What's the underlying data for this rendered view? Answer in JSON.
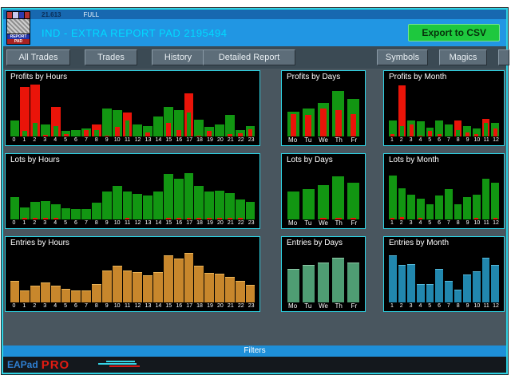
{
  "window": {
    "top_strip": {
      "value": "21.613",
      "mode": "FULL"
    },
    "header": {
      "title": "IND - EXTRA REPORT PAD 2195494",
      "export_label": "Export to CSV"
    },
    "logo": {
      "line1": "REPORT",
      "line2": "PAD"
    },
    "filters_label": "Filters",
    "footer": {
      "brand": "EAPad",
      "pro": "PRO"
    }
  },
  "tabs": [
    {
      "label": "All Trades"
    },
    {
      "label": "Trades"
    },
    {
      "label": "History"
    },
    {
      "label": "Detailed Report"
    },
    {
      "label": "Symbols"
    },
    {
      "label": "Magics"
    }
  ],
  "colors": {
    "profit_green": "#129612",
    "loss_red": "#ea1409",
    "entries_orange": "#c8872c",
    "entries_orange_edge": "#e9b357",
    "entries_teal": "#4f9d73",
    "entries_teal_edge": "#8fcaa8",
    "entries_blue": "#2187ae",
    "entries_blue_edge": "#57b9d9",
    "panel_border_cyan": "#2ed3e4",
    "header_blue": "#2196e3",
    "title_cyan": "#00dbff",
    "export_green": "#1ec83e",
    "filters_blue": "#1e8fd8"
  },
  "chart_data": [
    {
      "id": "profits-by-hours",
      "type": "bar",
      "title": "Profits by Hours",
      "ylim": [
        0,
        1
      ],
      "units": "relative-height",
      "grid": false,
      "legend": "none",
      "labels": [
        "0",
        "1",
        "2",
        "3",
        "4",
        "5",
        "6",
        "7",
        "8",
        "9",
        "10",
        "11",
        "12",
        "13",
        "14",
        "15",
        "16",
        "17",
        "18",
        "19",
        "20",
        "21",
        "22",
        "23"
      ],
      "series": [
        {
          "name": "profit",
          "color": "#129612",
          "values": [
            0.3,
            0.1,
            0.25,
            0.22,
            0.2,
            0.1,
            0.12,
            0.15,
            0.12,
            0.52,
            0.5,
            0.3,
            0.22,
            0.2,
            0.38,
            0.55,
            0.5,
            0.45,
            0.32,
            0.18,
            0.22,
            0.4,
            0.12,
            0.2
          ]
        },
        {
          "name": "loss",
          "color": "#ea1409",
          "values": [
            0,
            0.93,
            0.97,
            0.03,
            0.55,
            0.04,
            0,
            0.12,
            0.22,
            0.02,
            0.18,
            0.45,
            0,
            0.08,
            0,
            0.25,
            0.12,
            0.8,
            0.02,
            0.1,
            0,
            0.04,
            0.06,
            0.14
          ]
        }
      ]
    },
    {
      "id": "profits-by-days",
      "type": "bar",
      "title": "Profits by Days",
      "ylim": [
        0,
        1
      ],
      "units": "relative-height",
      "grid": false,
      "legend": "none",
      "label_size": 8,
      "labels": [
        "Mo",
        "Tu",
        "We",
        "Th",
        "Fr"
      ],
      "series": [
        {
          "name": "profit",
          "color": "#129612",
          "values": [
            0.46,
            0.53,
            0.62,
            0.85,
            0.7
          ]
        },
        {
          "name": "loss",
          "color": "#ea1409",
          "values": [
            0.42,
            0.4,
            0.52,
            0.5,
            0.42
          ]
        }
      ]
    },
    {
      "id": "profits-by-month",
      "type": "bar",
      "title": "Profits by Month",
      "ylim": [
        0,
        1
      ],
      "units": "relative-height",
      "grid": false,
      "legend": "none",
      "labels": [
        "1",
        "2",
        "3",
        "4",
        "5",
        "6",
        "7",
        "8",
        "9",
        "10",
        "11",
        "12"
      ],
      "series": [
        {
          "name": "profit",
          "color": "#129612",
          "values": [
            0.3,
            0.2,
            0.3,
            0.28,
            0.17,
            0.3,
            0.22,
            0.12,
            0.2,
            0.15,
            0.26,
            0.25
          ]
        },
        {
          "name": "loss",
          "color": "#ea1409",
          "values": [
            0.05,
            0.95,
            0.22,
            0.02,
            0.1,
            0.04,
            0,
            0.3,
            0.08,
            0.05,
            0.33,
            0.15
          ]
        }
      ]
    },
    {
      "id": "lots-by-hours",
      "type": "bar",
      "title": "Lots by Hours",
      "ylim": [
        0,
        1
      ],
      "units": "relative-height",
      "grid": false,
      "legend": "none",
      "labels": [
        "0",
        "1",
        "2",
        "3",
        "4",
        "5",
        "6",
        "7",
        "8",
        "9",
        "10",
        "11",
        "12",
        "13",
        "14",
        "15",
        "16",
        "17",
        "18",
        "19",
        "20",
        "21",
        "22",
        "23"
      ],
      "series": [
        {
          "name": "lots",
          "color": "#129612",
          "values": [
            0.42,
            0.22,
            0.33,
            0.34,
            0.28,
            0.21,
            0.2,
            0.19,
            0.31,
            0.52,
            0.63,
            0.52,
            0.48,
            0.45,
            0.52,
            0.85,
            0.76,
            0.87,
            0.62,
            0.52,
            0.54,
            0.49,
            0.38,
            0.33
          ]
        },
        {
          "name": "loss-marker",
          "color": "#ea1409",
          "values": [
            0,
            0.03,
            0.03,
            0.03,
            0.03,
            0,
            0,
            0,
            0,
            0,
            0,
            0.03,
            0,
            0,
            0,
            0.03,
            0.03,
            0.03,
            0.03,
            0.03,
            0.03,
            0.03,
            0.03,
            0
          ]
        }
      ]
    },
    {
      "id": "lots-by-days",
      "type": "bar",
      "title": "Lots by Days",
      "ylim": [
        0,
        1
      ],
      "units": "relative-height",
      "grid": false,
      "legend": "none",
      "label_size": 8,
      "labels": [
        "Mo",
        "Tu",
        "We",
        "Th",
        "Fr"
      ],
      "series": [
        {
          "name": "lots",
          "color": "#129612",
          "values": [
            0.52,
            0.57,
            0.64,
            0.8,
            0.68
          ]
        },
        {
          "name": "loss-marker",
          "color": "#ea1409",
          "values": [
            0,
            0,
            0.03,
            0.03,
            0.03
          ]
        }
      ]
    },
    {
      "id": "lots-by-month",
      "type": "bar",
      "title": "Lots by Month",
      "ylim": [
        0,
        1
      ],
      "units": "relative-height",
      "grid": false,
      "legend": "none",
      "labels": [
        "1",
        "2",
        "3",
        "4",
        "5",
        "6",
        "7",
        "8",
        "9",
        "10",
        "11",
        "12"
      ],
      "series": [
        {
          "name": "lots",
          "color": "#129612",
          "values": [
            0.82,
            0.58,
            0.47,
            0.39,
            0.28,
            0.45,
            0.57,
            0.28,
            0.42,
            0.46,
            0.76,
            0.68
          ]
        },
        {
          "name": "loss-marker",
          "color": "#ea1409",
          "values": [
            0.03,
            0.04,
            0,
            0.03,
            0,
            0,
            0,
            0,
            0,
            0.03,
            0,
            0.03
          ]
        }
      ]
    },
    {
      "id": "entries-by-hours",
      "type": "bar",
      "title": "Entries by Hours",
      "ylim": [
        0,
        1
      ],
      "units": "relative-height",
      "grid": false,
      "legend": "none",
      "labels": [
        "0",
        "1",
        "2",
        "3",
        "4",
        "5",
        "6",
        "7",
        "8",
        "9",
        "10",
        "11",
        "12",
        "13",
        "14",
        "15",
        "16",
        "17",
        "18",
        "19",
        "20",
        "21",
        "22",
        "23"
      ],
      "series": [
        {
          "name": "entries",
          "color": "#c8872c",
          "edge": "#e9b357",
          "values": [
            0.4,
            0.23,
            0.32,
            0.38,
            0.32,
            0.25,
            0.22,
            0.22,
            0.35,
            0.6,
            0.68,
            0.6,
            0.56,
            0.51,
            0.57,
            0.88,
            0.82,
            0.92,
            0.68,
            0.55,
            0.54,
            0.48,
            0.41,
            0.33
          ]
        }
      ]
    },
    {
      "id": "entries-by-days",
      "type": "bar",
      "title": "Entries by Days",
      "ylim": [
        0,
        1
      ],
      "units": "relative-height",
      "grid": false,
      "legend": "none",
      "label_size": 8,
      "labels": [
        "Mo",
        "Tu",
        "We",
        "Th",
        "Fr"
      ],
      "series": [
        {
          "name": "entries",
          "color": "#4f9d73",
          "edge": "#8fcaa8",
          "values": [
            0.62,
            0.7,
            0.75,
            0.84,
            0.74
          ]
        }
      ]
    },
    {
      "id": "entries-by-month",
      "type": "bar",
      "title": "Entries by Month",
      "ylim": [
        0,
        1
      ],
      "units": "relative-height",
      "grid": false,
      "legend": "none",
      "labels": [
        "1",
        "2",
        "3",
        "4",
        "5",
        "6",
        "7",
        "8",
        "9",
        "10",
        "11",
        "12"
      ],
      "series": [
        {
          "name": "entries",
          "color": "#2187ae",
          "edge": "#57b9d9",
          "values": [
            0.88,
            0.7,
            0.72,
            0.35,
            0.35,
            0.62,
            0.4,
            0.24,
            0.52,
            0.58,
            0.84,
            0.7
          ]
        }
      ]
    }
  ]
}
